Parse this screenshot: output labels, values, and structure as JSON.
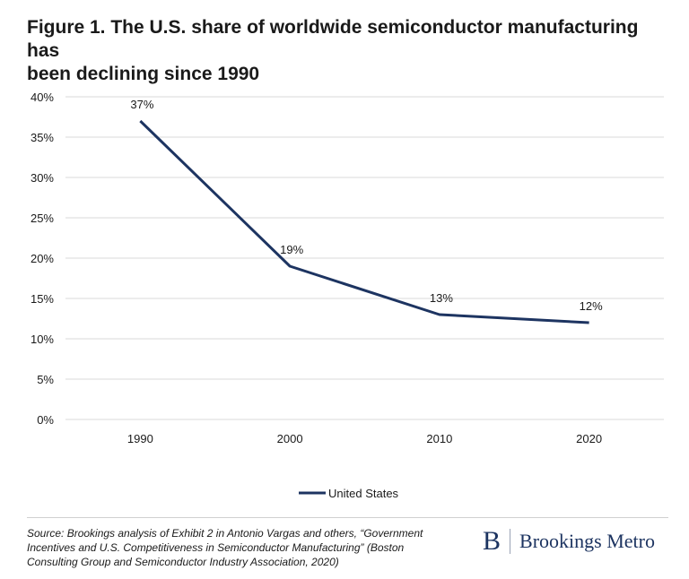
{
  "title_lines": [
    "Figure 1. The U.S. share of worldwide semiconductor manufacturing has",
    "been declining since 1990"
  ],
  "source": "Source: Brookings analysis of Exhibit 2 in Antonio Vargas and others, “Government Incentives and U.S. Competitiveness in Semiconductor Manufacturing” (Boston Consulting Group and Semiconductor Industry Association, 2020)",
  "logo": {
    "mark": "B",
    "text": "Brookings Metro"
  },
  "colors": {
    "series": "#1d3461",
    "grid": "#d9d9d9",
    "text": "#1a1a1a"
  },
  "chart_data": {
    "type": "line",
    "categories": [
      "1990",
      "2000",
      "2010",
      "2020"
    ],
    "series": [
      {
        "name": "United States",
        "values": [
          37,
          19,
          13,
          12
        ],
        "labels": [
          "37%",
          "19%",
          "13%",
          "12%"
        ]
      }
    ],
    "ylim": [
      0,
      40
    ],
    "yticks": [
      "0%",
      "5%",
      "10%",
      "15%",
      "20%",
      "25%",
      "30%",
      "35%",
      "40%"
    ],
    "ytick_values": [
      0,
      5,
      10,
      15,
      20,
      25,
      30,
      35,
      40
    ],
    "grid": true,
    "legend_position": "bottom-center",
    "xlabel": "",
    "ylabel": ""
  }
}
